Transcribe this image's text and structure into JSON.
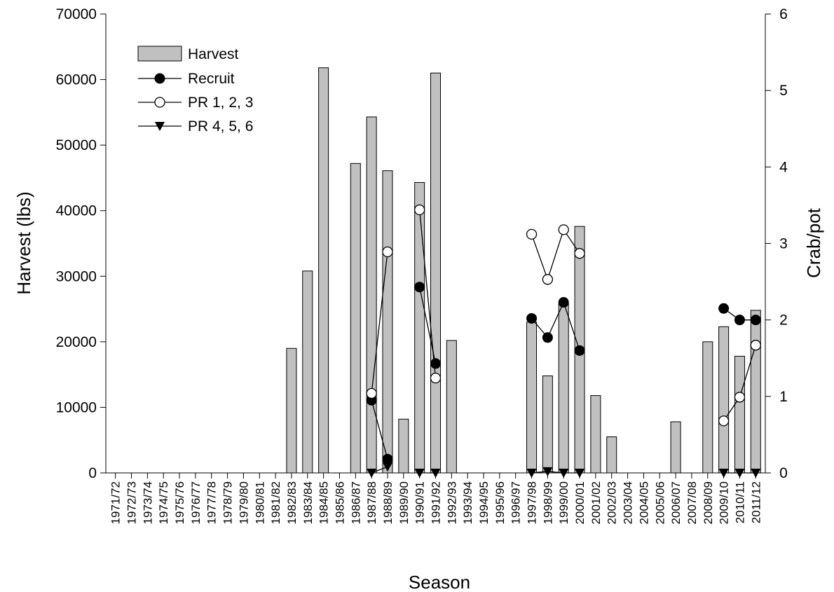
{
  "chart_data": {
    "type": "bar",
    "title": "",
    "xlabel": "Season",
    "ylabel": "Harvest (lbs)",
    "y2label": "Crab/pot",
    "ylim": [
      0,
      70000
    ],
    "y2lim": [
      0,
      6
    ],
    "yticks": [
      0,
      10000,
      20000,
      30000,
      40000,
      50000,
      60000,
      70000
    ],
    "y2ticks": [
      0,
      1,
      2,
      3,
      4,
      5,
      6
    ],
    "grid": false,
    "legend_position": "top-left",
    "categories": [
      "1971/72",
      "1972/73",
      "1973/74",
      "1974/75",
      "1975/76",
      "1976/77",
      "1977/78",
      "1978/79",
      "1979/80",
      "1980/81",
      "1981/82",
      "1982/83",
      "1983/84",
      "1984/85",
      "1985/86",
      "1986/87",
      "1987/88",
      "1988/89",
      "1989/90",
      "1990/91",
      "1991/92",
      "1992/93",
      "1993/94",
      "1994/95",
      "1995/96",
      "1996/97",
      "1997/98",
      "1998/99",
      "1999/00",
      "2000/01",
      "2001/02",
      "2002/03",
      "2003/04",
      "2004/05",
      "2005/06",
      "2006/07",
      "2007/08",
      "2008/09",
      "2009/10",
      "2010/11",
      "2011/12"
    ],
    "series": [
      {
        "name": "Harvest",
        "kind": "bar",
        "axis": "left",
        "color": "#c0c0c0",
        "values": [
          0,
          0,
          0,
          0,
          0,
          0,
          0,
          0,
          0,
          0,
          0,
          19000,
          30800,
          61800,
          0,
          47200,
          54300,
          46100,
          8200,
          44300,
          61000,
          20200,
          0,
          0,
          0,
          0,
          23000,
          14800,
          25800,
          37600,
          11800,
          5500,
          0,
          0,
          0,
          7800,
          0,
          20000,
          22300,
          17800,
          24800
        ]
      },
      {
        "name": "Recruit",
        "kind": "line",
        "marker": "filled-circle",
        "axis": "right",
        "color": "#000000",
        "values": [
          null,
          null,
          null,
          null,
          null,
          null,
          null,
          null,
          null,
          null,
          null,
          null,
          null,
          null,
          null,
          null,
          0.95,
          0.18,
          null,
          2.43,
          1.43,
          null,
          null,
          null,
          null,
          null,
          2.02,
          1.77,
          2.23,
          1.6,
          null,
          null,
          null,
          null,
          null,
          null,
          null,
          null,
          2.15,
          2.0,
          2.0
        ]
      },
      {
        "name": "PR 1, 2, 3",
        "kind": "line",
        "marker": "open-circle",
        "axis": "right",
        "color": "#000000",
        "values": [
          null,
          null,
          null,
          null,
          null,
          null,
          null,
          null,
          null,
          null,
          null,
          null,
          null,
          null,
          null,
          null,
          1.04,
          2.89,
          null,
          3.44,
          1.24,
          null,
          null,
          null,
          null,
          null,
          3.12,
          2.53,
          3.18,
          2.87,
          null,
          null,
          null,
          null,
          null,
          null,
          null,
          null,
          0.68,
          0.99,
          1.67
        ]
      },
      {
        "name": "PR 4, 5, 6",
        "kind": "line",
        "marker": "filled-triangle-down",
        "axis": "right",
        "color": "#000000",
        "values": [
          null,
          null,
          null,
          null,
          null,
          null,
          null,
          null,
          null,
          null,
          null,
          null,
          null,
          null,
          null,
          null,
          0,
          0.08,
          null,
          0,
          0,
          null,
          null,
          null,
          null,
          null,
          0,
          0.02,
          0,
          0,
          null,
          null,
          null,
          null,
          null,
          null,
          null,
          null,
          0,
          0,
          0
        ]
      }
    ]
  }
}
